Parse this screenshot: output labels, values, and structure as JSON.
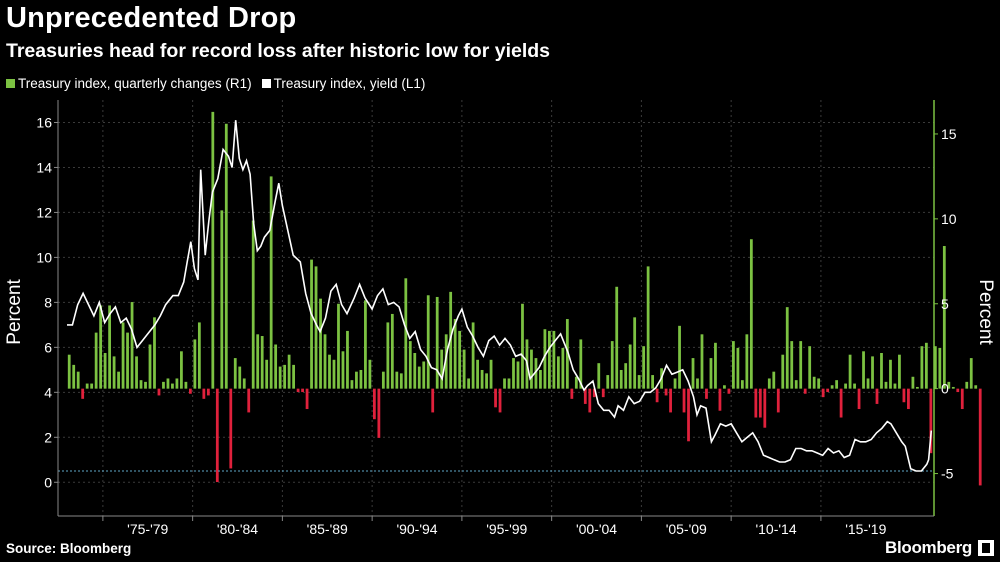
{
  "title": "Unprecedented Drop",
  "subtitle": "Treasuries head for record loss after historic low for yields",
  "footer": {
    "source": "Source: Bloomberg",
    "brand": "Bloomberg"
  },
  "colors": {
    "positive_bar": "#7cc242",
    "negative_bar": "#e0213c",
    "line": "#ffffff",
    "grid": "#3a3a3a",
    "reference": "#5fa8c8",
    "right_axis": "#7cc242"
  },
  "chart_data": {
    "type": "bar+line",
    "legend_placement": "top-left",
    "grid": true,
    "left_axis": {
      "label": "Percent",
      "ylim": [
        -1.5,
        17
      ],
      "ticks": [
        0,
        2,
        4,
        6,
        8,
        10,
        12,
        14,
        16
      ]
    },
    "right_axis": {
      "label": "Percent",
      "ylim": [
        -7.5,
        17
      ],
      "ticks": [
        -5,
        0,
        5,
        10,
        15
      ]
    },
    "xlim": [
      1972.5,
      2021.3
    ],
    "x_periods": [
      {
        "label": "'75-'79",
        "start": 1975,
        "end": 1980
      },
      {
        "label": "'80-'84",
        "start": 1980,
        "end": 1985
      },
      {
        "label": "'85-'89",
        "start": 1985,
        "end": 1990
      },
      {
        "label": "'90-'94",
        "start": 1990,
        "end": 1995
      },
      {
        "label": "'95-'99",
        "start": 1995,
        "end": 2000
      },
      {
        "label": "'00-'04",
        "start": 2000,
        "end": 2005
      },
      {
        "label": "'05-'09",
        "start": 2005,
        "end": 2010
      },
      {
        "label": "'10-'14",
        "start": 2010,
        "end": 2015
      },
      {
        "label": "'15-'19",
        "start": 2015,
        "end": 2020
      }
    ],
    "series": [
      {
        "name": "Treasury index, quarterly changes (R1)",
        "axis": "right",
        "kind": "bar",
        "start": 1973.0,
        "step": 0.25,
        "values": [
          2.0,
          1.4,
          1.0,
          -0.6,
          0.3,
          0.3,
          3.3,
          4.9,
          2.1,
          4.9,
          1.9,
          1.0,
          3.9,
          3.3,
          5.1,
          1.9,
          0.5,
          0.4,
          2.6,
          4.2,
          -0.4,
          0.4,
          0.6,
          0.3,
          0.6,
          2.2,
          0.4,
          -0.3,
          2.9,
          3.9,
          -0.6,
          -0.4,
          16.3,
          -5.5,
          10.5,
          15.6,
          -4.7,
          1.8,
          1.3,
          0.6,
          -1.4,
          9.9,
          3.2,
          3.1,
          1.7,
          12.5,
          2.6,
          1.3,
          1.4,
          2.0,
          1.4,
          -0.2,
          -0.2,
          -1.2,
          7.6,
          7.2,
          5.3,
          3.2,
          2.0,
          1.7,
          5.0,
          2.2,
          3.4,
          0.5,
          1.0,
          1.1,
          5.2,
          1.7,
          -1.8,
          -2.9,
          1.0,
          3.9,
          4.4,
          1.0,
          0.9,
          6.5,
          2.8,
          2.1,
          1.3,
          1.6,
          5.5,
          -1.4,
          5.4,
          2.3,
          3.2,
          5.7,
          4.1,
          3.4,
          2.3,
          0.6,
          3.9,
          1.7,
          1.1,
          0.9,
          1.7,
          -1.1,
          -1.4,
          0.6,
          0.6,
          1.8,
          1.6,
          5.0,
          2.9,
          2.3,
          1.8,
          1.1,
          3.5,
          3.4,
          3.4,
          1.9,
          2.4,
          4.1,
          -0.6,
          0.7,
          2.9,
          -0.9,
          -1.4,
          -0.5,
          1.5,
          -0.5,
          0.8,
          2.8,
          6.0,
          1.1,
          1.5,
          2.6,
          4.2,
          0.8,
          2.5,
          7.2,
          0.8,
          -0.8,
          1.2,
          -0.4,
          -1.4,
          0.6,
          3.7,
          -1.4,
          -3.1,
          1.8,
          0.6,
          3.2,
          -0.6,
          1.8,
          2.7,
          -1.3,
          0.2,
          -0.3,
          2.8,
          2.4,
          0.5,
          3.2,
          8.8,
          -1.7,
          -1.7,
          -2.3,
          0.6,
          1.0,
          -1.4,
          2.0,
          4.8,
          2.8,
          0.5,
          2.8,
          -0.3,
          2.5,
          0.7,
          0.6,
          -0.5,
          -0.2,
          0.2,
          0.5,
          -1.7,
          0.3,
          2.0,
          0.3,
          -1.2,
          2.2,
          0.6,
          1.9,
          -0.9,
          2.1,
          0.4,
          1.7,
          0.3,
          2.0,
          -0.8,
          -1.2,
          0.7,
          0.1,
          2.5,
          2.7,
          -3.8,
          2.5,
          2.4,
          8.4,
          0.4,
          0.1,
          -0.2,
          -1.2,
          0.4,
          1.8,
          0.2,
          -5.7
        ]
      },
      {
        "name": "Treasury index, yield (L1)",
        "axis": "left",
        "kind": "line",
        "points": [
          [
            1973.0,
            7.0
          ],
          [
            1973.3,
            7.0
          ],
          [
            1973.6,
            7.9
          ],
          [
            1973.9,
            8.4
          ],
          [
            1974.2,
            7.9
          ],
          [
            1974.5,
            7.4
          ],
          [
            1974.8,
            8.0
          ],
          [
            1975.1,
            7.1
          ],
          [
            1975.4,
            7.5
          ],
          [
            1975.7,
            7.8
          ],
          [
            1976.0,
            7.1
          ],
          [
            1976.3,
            7.3
          ],
          [
            1976.6,
            6.8
          ],
          [
            1976.9,
            6.0
          ],
          [
            1977.2,
            6.3
          ],
          [
            1977.6,
            6.7
          ],
          [
            1977.9,
            7.0
          ],
          [
            1978.2,
            7.4
          ],
          [
            1978.5,
            7.9
          ],
          [
            1978.9,
            8.3
          ],
          [
            1979.2,
            8.3
          ],
          [
            1979.5,
            8.9
          ],
          [
            1979.7,
            9.8
          ],
          [
            1979.9,
            10.7
          ],
          [
            1980.1,
            9.5
          ],
          [
            1980.3,
            9.0
          ],
          [
            1980.45,
            13.9
          ],
          [
            1980.7,
            10.1
          ],
          [
            1980.9,
            11.6
          ],
          [
            1981.1,
            12.9
          ],
          [
            1981.4,
            13.5
          ],
          [
            1981.7,
            14.8
          ],
          [
            1982.0,
            14.5
          ],
          [
            1982.2,
            14.0
          ],
          [
            1982.4,
            16.1
          ],
          [
            1982.6,
            14.4
          ],
          [
            1982.8,
            13.9
          ],
          [
            1983.0,
            14.3
          ],
          [
            1983.2,
            13.7
          ],
          [
            1983.4,
            11.5
          ],
          [
            1983.6,
            10.3
          ],
          [
            1983.8,
            10.5
          ],
          [
            1984.0,
            10.9
          ],
          [
            1984.3,
            11.2
          ],
          [
            1984.6,
            12.5
          ],
          [
            1984.8,
            13.3
          ],
          [
            1985.0,
            12.3
          ],
          [
            1985.3,
            11.2
          ],
          [
            1985.6,
            10.1
          ],
          [
            1986.0,
            9.8
          ],
          [
            1986.3,
            8.4
          ],
          [
            1986.6,
            7.5
          ],
          [
            1986.9,
            7.0
          ],
          [
            1987.1,
            6.7
          ],
          [
            1987.4,
            7.3
          ],
          [
            1987.7,
            8.5
          ],
          [
            1988.0,
            8.8
          ],
          [
            1988.3,
            7.9
          ],
          [
            1988.6,
            7.5
          ],
          [
            1989.0,
            8.2
          ],
          [
            1989.3,
            8.8
          ],
          [
            1989.6,
            8.2
          ],
          [
            1990.0,
            7.7
          ],
          [
            1990.3,
            8.3
          ],
          [
            1990.6,
            8.6
          ],
          [
            1990.9,
            7.9
          ],
          [
            1991.2,
            8.0
          ],
          [
            1991.5,
            7.8
          ],
          [
            1991.8,
            7.0
          ],
          [
            1992.1,
            6.4
          ],
          [
            1992.4,
            6.7
          ],
          [
            1992.7,
            5.9
          ],
          [
            1993.0,
            5.6
          ],
          [
            1993.3,
            5.1
          ],
          [
            1993.6,
            5.0
          ],
          [
            1993.9,
            4.6
          ],
          [
            1994.2,
            5.9
          ],
          [
            1994.5,
            6.8
          ],
          [
            1994.8,
            7.4
          ],
          [
            1995.0,
            7.7
          ],
          [
            1995.3,
            6.9
          ],
          [
            1995.6,
            6.5
          ],
          [
            1995.9,
            6.0
          ],
          [
            1996.2,
            5.6
          ],
          [
            1996.5,
            6.3
          ],
          [
            1996.8,
            6.5
          ],
          [
            1997.1,
            6.1
          ],
          [
            1997.4,
            6.4
          ],
          [
            1997.7,
            6.1
          ],
          [
            1998.0,
            5.6
          ],
          [
            1998.3,
            5.7
          ],
          [
            1998.6,
            5.4
          ],
          [
            1998.8,
            4.6
          ],
          [
            1999.0,
            4.8
          ],
          [
            1999.3,
            5.1
          ],
          [
            1999.6,
            5.6
          ],
          [
            1999.9,
            6.0
          ],
          [
            2000.2,
            6.3
          ],
          [
            2000.5,
            6.6
          ],
          [
            2000.7,
            6.2
          ],
          [
            2000.9,
            5.8
          ],
          [
            2001.2,
            5.0
          ],
          [
            2001.5,
            4.6
          ],
          [
            2001.8,
            4.1
          ],
          [
            2002.0,
            4.3
          ],
          [
            2002.3,
            4.5
          ],
          [
            2002.6,
            3.5
          ],
          [
            2002.9,
            3.2
          ],
          [
            2003.2,
            3.2
          ],
          [
            2003.5,
            2.9
          ],
          [
            2003.7,
            3.4
          ],
          [
            2004.0,
            3.2
          ],
          [
            2004.3,
            3.8
          ],
          [
            2004.6,
            3.5
          ],
          [
            2004.9,
            3.6
          ],
          [
            2005.2,
            4.0
          ],
          [
            2005.5,
            4.0
          ],
          [
            2005.8,
            4.2
          ],
          [
            2006.1,
            4.6
          ],
          [
            2006.4,
            5.2
          ],
          [
            2006.7,
            4.8
          ],
          [
            2007.0,
            4.9
          ],
          [
            2007.3,
            5.0
          ],
          [
            2007.6,
            4.5
          ],
          [
            2007.9,
            3.8
          ],
          [
            2008.1,
            3.0
          ],
          [
            2008.3,
            3.4
          ],
          [
            2008.6,
            3.3
          ],
          [
            2008.9,
            1.8
          ],
          [
            2009.1,
            2.1
          ],
          [
            2009.4,
            2.6
          ],
          [
            2009.7,
            2.5
          ],
          [
            2010.0,
            2.6
          ],
          [
            2010.3,
            2.2
          ],
          [
            2010.6,
            1.8
          ],
          [
            2010.9,
            2.0
          ],
          [
            2011.2,
            2.2
          ],
          [
            2011.5,
            1.8
          ],
          [
            2011.8,
            1.2
          ],
          [
            2012.1,
            1.1
          ],
          [
            2012.4,
            1.0
          ],
          [
            2012.7,
            0.9
          ],
          [
            2013.0,
            0.9
          ],
          [
            2013.3,
            1.0
          ],
          [
            2013.6,
            1.5
          ],
          [
            2013.9,
            1.5
          ],
          [
            2014.2,
            1.4
          ],
          [
            2014.5,
            1.4
          ],
          [
            2014.8,
            1.3
          ],
          [
            2015.1,
            1.2
          ],
          [
            2015.4,
            1.5
          ],
          [
            2015.7,
            1.3
          ],
          [
            2016.0,
            1.4
          ],
          [
            2016.3,
            1.1
          ],
          [
            2016.6,
            1.2
          ],
          [
            2016.9,
            1.9
          ],
          [
            2017.2,
            1.8
          ],
          [
            2017.5,
            1.8
          ],
          [
            2017.8,
            1.9
          ],
          [
            2018.1,
            2.2
          ],
          [
            2018.4,
            2.4
          ],
          [
            2018.7,
            2.7
          ],
          [
            2018.9,
            2.6
          ],
          [
            2019.2,
            2.2
          ],
          [
            2019.5,
            1.8
          ],
          [
            2019.7,
            1.6
          ],
          [
            2020.0,
            0.6
          ],
          [
            2020.3,
            0.5
          ],
          [
            2020.6,
            0.5
          ],
          [
            2020.9,
            0.8
          ],
          [
            2021.0,
            1.0
          ],
          [
            2021.15,
            2.3
          ]
        ]
      }
    ],
    "reference_line": {
      "axis": "left",
      "y": 0.5
    }
  }
}
